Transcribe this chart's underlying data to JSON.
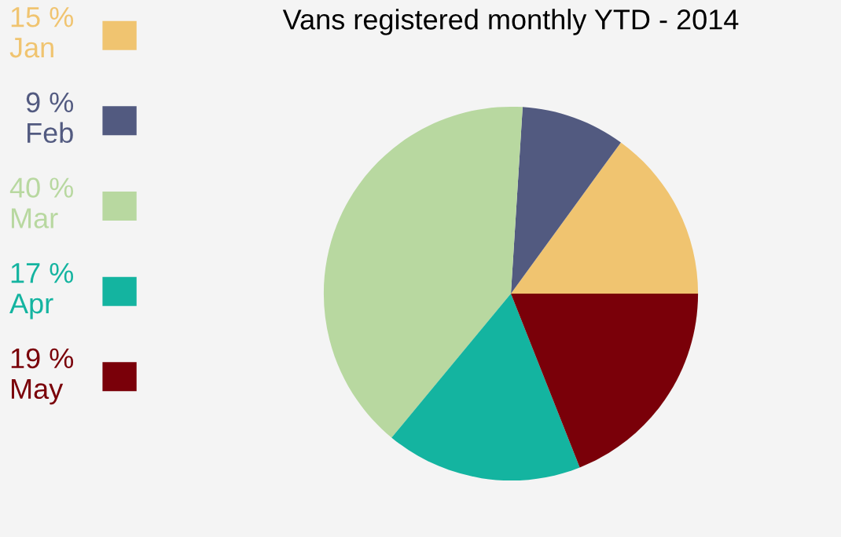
{
  "chart_data": {
    "type": "pie",
    "title": "Vans registered monthly YTD - 2014",
    "categories": [
      "Jan",
      "Feb",
      "Mar",
      "Apr",
      "May"
    ],
    "values": [
      15,
      9,
      40,
      17,
      19
    ],
    "value_labels": [
      "15 %",
      "9 %",
      "40 %",
      "17 %",
      "19 %"
    ],
    "colors": [
      "#f0c470",
      "#525a80",
      "#b8d8a0",
      "#14b4a0",
      "#7a0009"
    ],
    "legend": "left"
  }
}
